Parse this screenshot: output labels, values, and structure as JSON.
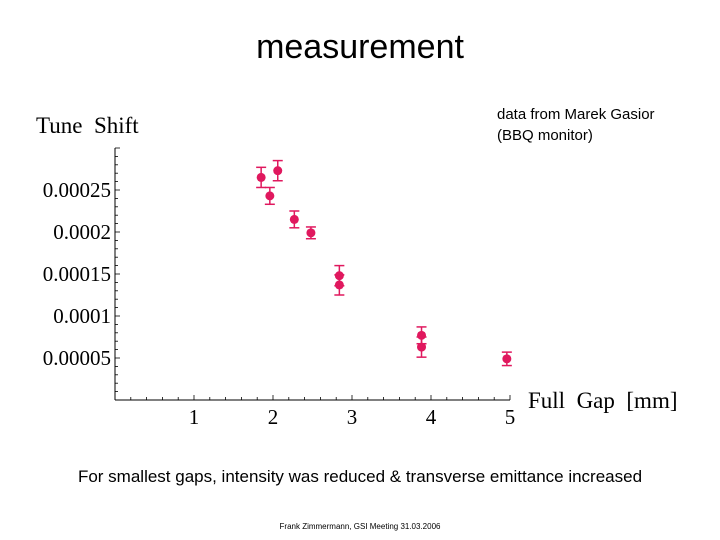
{
  "slide": {
    "title": "measurement",
    "note_line1": "data from Marek Gasior",
    "note_line2": "(BBQ monitor)",
    "caption": "For smallest gaps, intensity was reduced & transverse emittance increased",
    "footer": "Frank Zimmermann, GSI Meeting 31.03.2006"
  },
  "colors": {
    "marker": "#e0185e",
    "axis": "#000000"
  },
  "chart_data": {
    "type": "scatter",
    "xlabel": "Full  Gap  [mm]",
    "ylabel": "Tune  Shift",
    "xlim": [
      0.0,
      5.0
    ],
    "ylim": [
      0.0,
      0.0003
    ],
    "xticks": [
      {
        "value": 1,
        "label": "1"
      },
      {
        "value": 2,
        "label": "2"
      },
      {
        "value": 3,
        "label": "3"
      },
      {
        "value": 4,
        "label": "4"
      },
      {
        "value": 5,
        "label": "5"
      }
    ],
    "yticks": [
      {
        "value": 5e-05,
        "label": "0.00005"
      },
      {
        "value": 0.0001,
        "label": "0.0001"
      },
      {
        "value": 0.00015,
        "label": "0.00015"
      },
      {
        "value": 0.0002,
        "label": "0.0002"
      },
      {
        "value": 0.00025,
        "label": "0.00025"
      }
    ],
    "series": [
      {
        "points": [
          {
            "x": 1.85,
            "y": 0.000265,
            "err": 1.2e-05
          },
          {
            "x": 1.96,
            "y": 0.000243,
            "err": 1e-05
          },
          {
            "x": 2.06,
            "y": 0.000273,
            "err": 1.2e-05
          },
          {
            "x": 2.27,
            "y": 0.000215,
            "err": 1e-05
          },
          {
            "x": 2.48,
            "y": 0.000199,
            "err": 7e-06
          },
          {
            "x": 2.84,
            "y": 0.000148,
            "err": 1.2e-05
          },
          {
            "x": 2.84,
            "y": 0.000137,
            "err": 1.2e-05
          },
          {
            "x": 3.88,
            "y": 7.7e-05,
            "err": 1e-05
          },
          {
            "x": 3.88,
            "y": 6.3e-05,
            "err": 1.2e-05
          },
          {
            "x": 4.96,
            "y": 4.9e-05,
            "err": 8e-06
          }
        ]
      }
    ]
  }
}
